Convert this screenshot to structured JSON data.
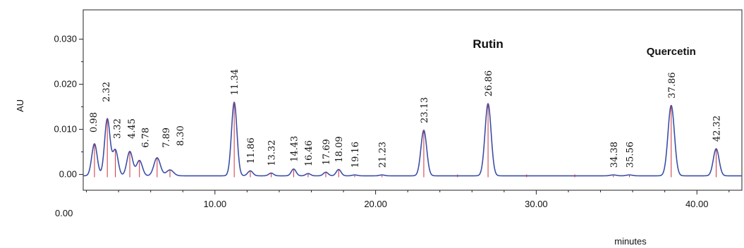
{
  "chart_data": {
    "type": "line",
    "title": "",
    "xlabel": "minutes",
    "ylabel": "AU",
    "xlim": [
      1.8,
      42.8
    ],
    "ylim": [
      -0.0035,
      0.0365
    ],
    "x_ticks": [
      {
        "value": 10,
        "label": "10.00"
      },
      {
        "value": 20,
        "label": "20.00"
      },
      {
        "value": 30,
        "label": "30.00"
      },
      {
        "value": 40,
        "label": "40.00"
      }
    ],
    "y_ticks": [
      {
        "value": 0.0,
        "label": "0.00"
      },
      {
        "value": 0.01,
        "label": "0.010"
      },
      {
        "value": 0.02,
        "label": "0.020"
      },
      {
        "value": 0.03,
        "label": "0.030"
      }
    ],
    "x_origin_label": "0.00",
    "baseline": -0.0003,
    "colors": {
      "trace": "#3a4fa8",
      "markers": "#d0303a",
      "text": "#111111"
    },
    "peaks": [
      {
        "label": "0.98",
        "x": 2.5,
        "height": 0.0071,
        "width": 0.17
      },
      {
        "label": "2.32",
        "x": 3.3,
        "height": 0.0126,
        "width": 0.17
      },
      {
        "label": "3.32",
        "x": 3.8,
        "height": 0.0057,
        "width": 0.17
      },
      {
        "label": "4.45",
        "x": 4.7,
        "height": 0.0054,
        "width": 0.18
      },
      {
        "label": "6.78",
        "x": 5.3,
        "height": 0.0034,
        "width": 0.18
      },
      {
        "label": "7.89",
        "x": 6.4,
        "height": 0.004,
        "width": 0.2
      },
      {
        "label": "8.30",
        "x": 7.2,
        "height": 0.0013,
        "width": 0.22
      },
      {
        "label": "11.34",
        "x": 11.2,
        "height": 0.0163,
        "width": 0.17
      },
      {
        "label": "11.86",
        "x": 12.2,
        "height": 0.0011,
        "width": 0.16
      },
      {
        "label": "13.32",
        "x": 13.5,
        "height": 0.0006,
        "width": 0.15
      },
      {
        "label": "14.43",
        "x": 14.9,
        "height": 0.0015,
        "width": 0.15
      },
      {
        "label": "16.46",
        "x": 15.8,
        "height": 0.0005,
        "width": 0.15
      },
      {
        "label": "17.69",
        "x": 16.9,
        "height": 0.0008,
        "width": 0.15
      },
      {
        "label": "18.09",
        "x": 17.7,
        "height": 0.0014,
        "width": 0.15
      },
      {
        "label": "19.16",
        "x": 18.7,
        "height": 0.0002,
        "width": 0.15
      },
      {
        "label": "21.23",
        "x": 20.4,
        "height": 0.0002,
        "width": 0.15
      },
      {
        "label": "23.13",
        "x": 23.0,
        "height": 0.0101,
        "width": 0.18
      },
      {
        "label": "26.86",
        "x": 27.0,
        "height": 0.016,
        "width": 0.19
      },
      {
        "label": "34.38",
        "x": 34.8,
        "height": 0.0002,
        "width": 0.18
      },
      {
        "label": "35.56",
        "x": 35.8,
        "height": 0.0002,
        "width": 0.18
      },
      {
        "label": "37.86",
        "x": 38.4,
        "height": 0.0156,
        "width": 0.2
      },
      {
        "label": "42.32",
        "x": 41.2,
        "height": 0.006,
        "width": 0.18
      }
    ],
    "unlabeled_markers": [
      25.1,
      29.4,
      32.4
    ],
    "compound_labels": [
      {
        "text": "Rutin",
        "peak": "26.86"
      },
      {
        "text": "Quercetin",
        "peak": "37.86"
      }
    ]
  }
}
